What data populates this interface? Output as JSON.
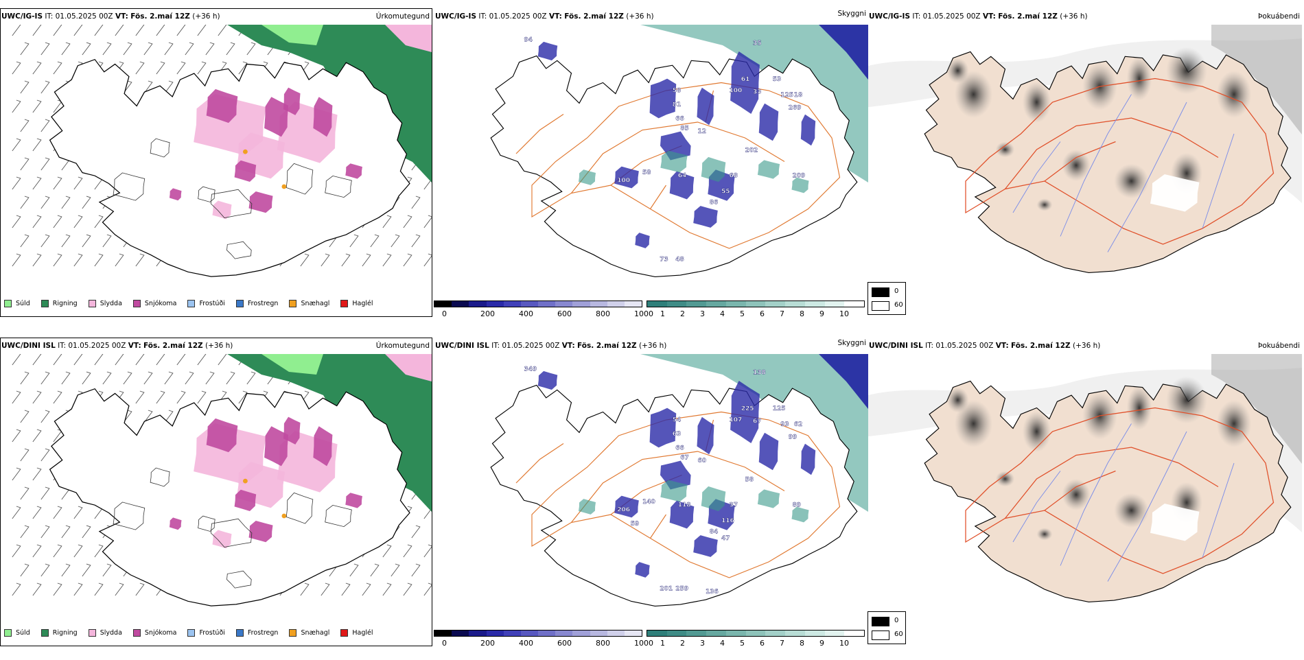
{
  "rows": [
    {
      "model": "UWC/IG-IS",
      "it_label": "IT:",
      "it_value": "01.05.2025 00Z",
      "vt_label": "VT:",
      "vt_value": "Fös. 2.maí 12Z",
      "lead": "(+36 h)",
      "panel1_title": "Úrkomutegund",
      "panel2_title": "Skyggni",
      "panel3_title": "Þokuábendi",
      "vis_labels": [
        "94",
        "35",
        "61",
        "53",
        "100",
        "33",
        "58",
        "81",
        "125",
        "66",
        "85",
        "12",
        "269",
        "202",
        "58",
        "64",
        "100",
        "68",
        "55",
        "86",
        "209",
        "18",
        "73",
        "48"
      ]
    },
    {
      "model": "UWC/DINI ISL",
      "it_label": "IT:",
      "it_value": "01.05.2025 00Z",
      "vt_label": "VT:",
      "vt_value": "Fös. 2.maí 12Z",
      "lead": "(+36 h)",
      "panel1_title": "Úrkomutegund",
      "panel2_title": "Skyggni",
      "panel3_title": "Þokuábendi",
      "vis_labels": [
        "349",
        "138",
        "225",
        "125",
        "107",
        "67",
        "54",
        "63",
        "93",
        "66",
        "67",
        "60",
        "99",
        "58",
        "140",
        "118",
        "206",
        "37",
        "116",
        "84",
        "89",
        "62",
        "201",
        "259",
        "59",
        "47",
        "136"
      ]
    }
  ],
  "precip_legend": [
    {
      "label": "Súld",
      "color": "#90ee90"
    },
    {
      "label": "Rigning",
      "color": "#2e8b57"
    },
    {
      "label": "Slydda",
      "color": "#f4b6dc"
    },
    {
      "label": "Snjókoma",
      "color": "#c04aa0"
    },
    {
      "label": "Frostúði",
      "color": "#9cc4f0"
    },
    {
      "label": "Frostregn",
      "color": "#3a78c8"
    },
    {
      "label": "Snæhagl",
      "color": "#f0a020"
    },
    {
      "label": "Haglél",
      "color": "#e01818"
    }
  ],
  "height_bar": {
    "unit": "m",
    "ticks": [
      "0",
      "200",
      "400",
      "600",
      "800",
      "1000"
    ],
    "colors": [
      "#000000",
      "#0a0a50",
      "#1a1a8a",
      "#2a2aa8",
      "#4040b8",
      "#5858c0",
      "#7070c8",
      "#8888d0",
      "#a0a0d8",
      "#b8b8e0",
      "#d0d0ea",
      "#e6e6f4"
    ]
  },
  "vis_bar": {
    "unit": "km",
    "ticks": [
      "1",
      "2",
      "3",
      "4",
      "5",
      "6",
      "7",
      "8",
      "9",
      "10"
    ],
    "colors": [
      "#2f7f7a",
      "#3f8c86",
      "#529a93",
      "#66a8a0",
      "#7ab6ad",
      "#8ec3ba",
      "#a3d0c8",
      "#b8ddd5",
      "#cde9e3",
      "#e2f3ef",
      "#ffffff"
    ]
  },
  "fog_legend": [
    {
      "label": "0",
      "color": "#000000"
    },
    {
      "label": "60",
      "color": "#ffffff"
    }
  ],
  "map_colors": {
    "land_fog": "#f1dfd0",
    "roads": "#e07830",
    "rivers": "#7a8ce8",
    "outline": "#000000",
    "sea_vis": "#3a9a8a",
    "deep_blue": "#1a1aa0"
  }
}
